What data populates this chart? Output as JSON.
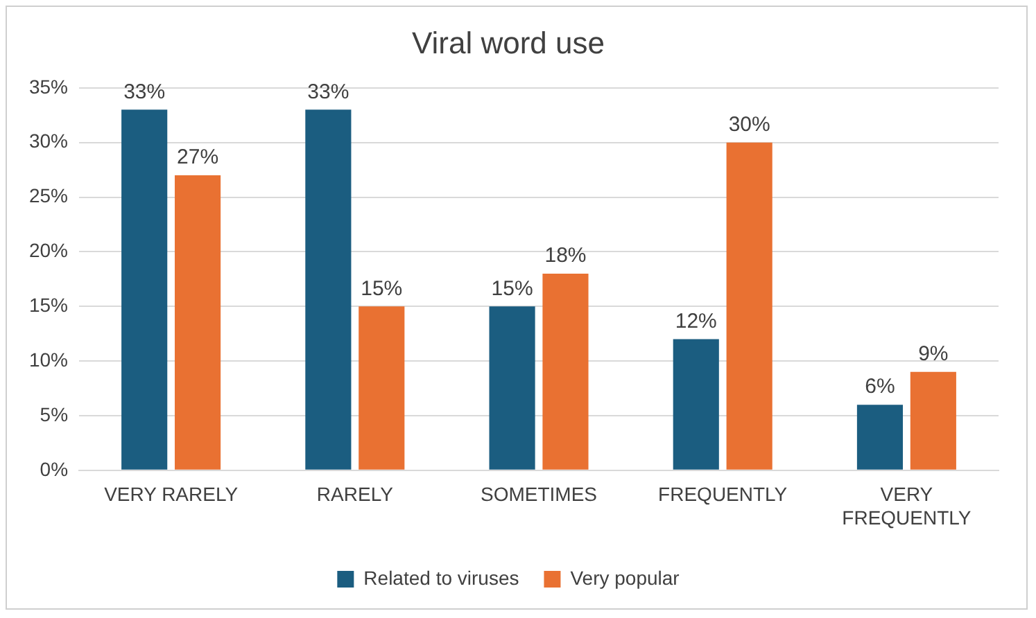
{
  "chart_data": {
    "type": "bar",
    "title": "Viral word use",
    "categories": [
      "VERY RARELY",
      "RARELY",
      "SOMETIMES",
      "FREQUENTLY",
      "VERY FREQUENTLY"
    ],
    "series": [
      {
        "name": "Related to viruses",
        "color": "#1b5d80",
        "values": [
          33,
          33,
          15,
          12,
          6
        ],
        "value_labels": [
          "33%",
          "33%",
          "15%",
          "12%",
          "6%"
        ]
      },
      {
        "name": "Very popular",
        "color": "#e97132",
        "values": [
          27,
          15,
          18,
          30,
          9
        ],
        "value_labels": [
          "27%",
          "15%",
          "18%",
          "30%",
          "9%"
        ]
      }
    ],
    "ylim": [
      0,
      35
    ],
    "yticks": [
      {
        "value": 0,
        "label": "0%"
      },
      {
        "value": 5,
        "label": "5%"
      },
      {
        "value": 10,
        "label": "10%"
      },
      {
        "value": 15,
        "label": "15%"
      },
      {
        "value": 20,
        "label": "20%"
      },
      {
        "value": 25,
        "label": "25%"
      },
      {
        "value": 30,
        "label": "30%"
      },
      {
        "value": 35,
        "label": "35%"
      }
    ],
    "grid": "y",
    "legend": "bottom"
  }
}
